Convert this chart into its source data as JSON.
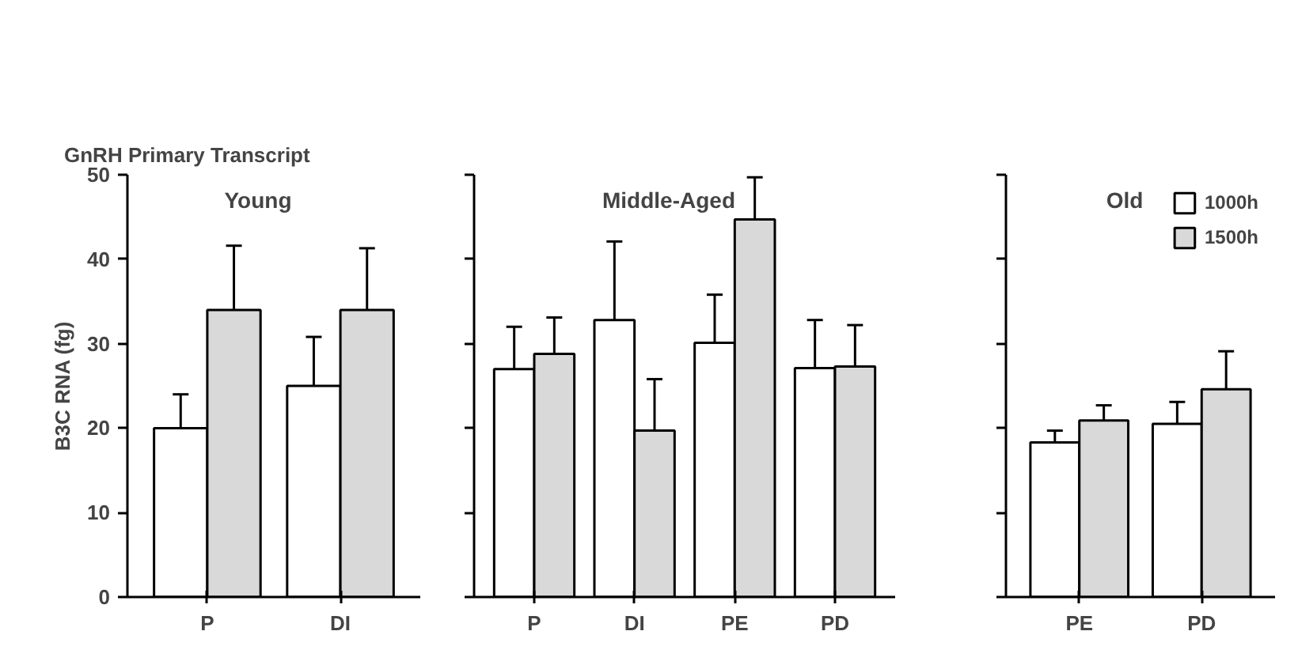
{
  "chart_data": [
    {
      "type": "bar",
      "title": "GnRH Primary Transcript",
      "subtitle": "Young",
      "ylabel": "B3C RNA (fg)",
      "categories": [
        "P",
        "DI"
      ],
      "ylim": [
        0,
        50
      ],
      "yticks": [
        0,
        10,
        20,
        30,
        40,
        50
      ],
      "grid": false,
      "legend": false,
      "series": [
        {
          "color": "#ffffff",
          "values": [
            20,
            25
          ],
          "errors": [
            [
              20,
              24
            ],
            [
              25,
              30.8
            ]
          ]
        },
        {
          "color": "#d9d9d9",
          "values": [
            34,
            34
          ],
          "errors": [
            [
              34,
              41.6
            ],
            [
              34,
              41.3
            ]
          ]
        }
      ]
    },
    {
      "type": "bar",
      "title": "Middle-Aged",
      "categories": [
        "P",
        "DI",
        "PE",
        "PD"
      ],
      "ylim": [
        0,
        50
      ],
      "yticks": [
        0,
        10,
        20,
        30,
        40,
        50
      ],
      "tick_labels": "x",
      "grid": false,
      "legend": false,
      "series": [
        {
          "color": "#ffffff",
          "values": [
            27,
            32.8,
            30.1,
            27.1
          ],
          "errors": [
            [
              27,
              32
            ],
            [
              32.8,
              42.1
            ],
            [
              30.1,
              35.8
            ],
            [
              27.1,
              32.8
            ]
          ]
        },
        {
          "color": "#d9d9d9",
          "values": [
            28.8,
            19.7,
            44.7,
            27.3
          ],
          "errors": [
            [
              28.8,
              33.1
            ],
            [
              19.7,
              25.8
            ],
            [
              44.7,
              49.7
            ],
            [
              27.3,
              32.2
            ]
          ]
        }
      ]
    },
    {
      "type": "bar",
      "title": "Old",
      "categories": [
        "PE",
        "PD"
      ],
      "ylim": [
        0,
        50
      ],
      "yticks": [
        0,
        10,
        20,
        30,
        40,
        50
      ],
      "tick_labels": "x",
      "grid": false,
      "legend": "top right",
      "series": [
        {
          "name": "1000h",
          "color": "#ffffff",
          "values": [
            18.3,
            20.5
          ],
          "errors": [
            [
              18.3,
              19.7
            ],
            [
              20.5,
              23.1
            ]
          ]
        },
        {
          "name": "1500h",
          "color": "#d9d9d9",
          "values": [
            20.9,
            24.6
          ],
          "errors": [
            [
              20.9,
              22.7
            ],
            [
              24.6,
              29.1
            ]
          ]
        }
      ]
    }
  ]
}
